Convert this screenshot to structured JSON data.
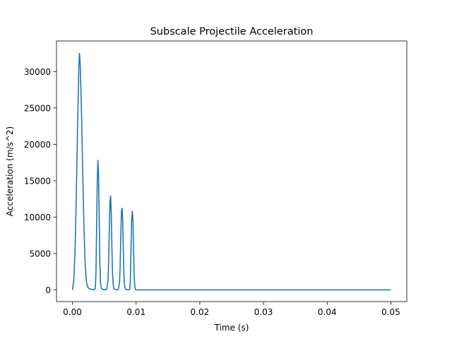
{
  "chart_data": {
    "type": "line",
    "title": "Subscale Projectile Acceleration",
    "xlabel": "Time (s)",
    "ylabel": "Acceleration (m/s^2)",
    "xlim": [
      -0.0025,
      0.0525
    ],
    "ylim": [
      -1600,
      34200
    ],
    "x_ticks": [
      0.0,
      0.01,
      0.02,
      0.03,
      0.04,
      0.05
    ],
    "x_tick_labels": [
      "0.00",
      "0.01",
      "0.02",
      "0.03",
      "0.04",
      "0.05"
    ],
    "y_ticks": [
      0,
      5000,
      10000,
      15000,
      20000,
      25000,
      30000
    ],
    "y_tick_labels": [
      "0",
      "5000",
      "10000",
      "15000",
      "20000",
      "25000",
      "30000"
    ],
    "grid": false,
    "line_color": "#1f77b4",
    "series": [
      {
        "x": [
          0.0,
          0.0002,
          0.0004,
          0.0006,
          0.0008,
          0.001,
          0.0011,
          0.0012,
          0.0014,
          0.0016,
          0.0018,
          0.002,
          0.0022,
          0.0024,
          0.0026,
          0.0028,
          0.003,
          0.0032,
          0.0034,
          0.0036,
          0.0037,
          0.0038,
          0.0039,
          0.004,
          0.0041,
          0.0042,
          0.0043,
          0.0044,
          0.0045,
          0.0046,
          0.0047,
          0.0048,
          0.005,
          0.0052,
          0.0054,
          0.0056,
          0.0057,
          0.0058,
          0.0059,
          0.006,
          0.0061,
          0.0062,
          0.0063,
          0.0064,
          0.0065,
          0.0066,
          0.0067,
          0.0068,
          0.007,
          0.0072,
          0.0074,
          0.0075,
          0.0076,
          0.0077,
          0.0078,
          0.0079,
          0.008,
          0.0081,
          0.0082,
          0.0083,
          0.0084,
          0.0085,
          0.0086,
          0.0088,
          0.009,
          0.0091,
          0.0092,
          0.0093,
          0.0094,
          0.0095,
          0.0096,
          0.0097,
          0.0098,
          0.0099,
          0.01,
          0.0101,
          0.0103,
          0.0106,
          0.011,
          0.015,
          0.02,
          0.03,
          0.04,
          0.05
        ],
        "y": [
          0,
          1200,
          5000,
          12500,
          22000,
          30500,
          32500,
          31500,
          25500,
          17000,
          9000,
          3500,
          1100,
          400,
          200,
          100,
          80,
          50,
          20,
          200,
          2500,
          8500,
          15000,
          17800,
          16000,
          10000,
          4200,
          1200,
          400,
          200,
          100,
          60,
          40,
          20,
          80,
          1500,
          4200,
          8500,
          12200,
          12900,
          10500,
          5800,
          2200,
          700,
          200,
          100,
          60,
          40,
          20,
          50,
          1000,
          3500,
          7500,
          10800,
          11200,
          9500,
          5000,
          1800,
          500,
          150,
          60,
          30,
          20,
          15,
          100,
          1500,
          5500,
          9500,
          10800,
          9700,
          5500,
          1800,
          400,
          80,
          20,
          0,
          0,
          0,
          0,
          0,
          0,
          0,
          0,
          0
        ]
      }
    ]
  }
}
